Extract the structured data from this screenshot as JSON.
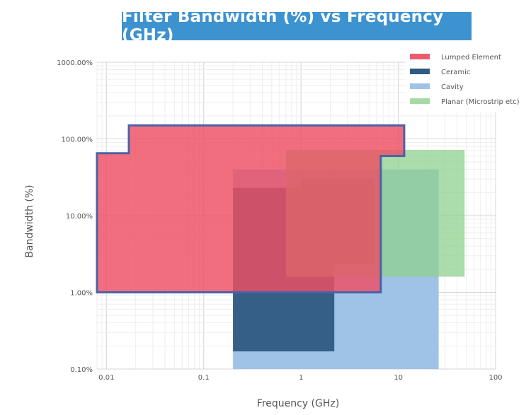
{
  "chart_data": {
    "type": "area",
    "title": "Filter Bandwidth (%) vs Frequency (GHz)",
    "xlabel": "Frequency (GHz)",
    "ylabel": "Bandwidth (%)",
    "x_scale": "log",
    "y_scale": "log",
    "xlim": [
      0.008,
      100
    ],
    "ylim": [
      0.1,
      1000
    ],
    "x_ticks": [
      {
        "value": 0.01,
        "label": "0.01"
      },
      {
        "value": 0.1,
        "label": "0.1"
      },
      {
        "value": 1,
        "label": "1"
      },
      {
        "value": 10,
        "label": "10"
      },
      {
        "value": 100,
        "label": "100"
      }
    ],
    "y_ticks": [
      {
        "value": 0.1,
        "label": "0.10%"
      },
      {
        "value": 1,
        "label": "1.00%"
      },
      {
        "value": 10,
        "label": "10.00%"
      },
      {
        "value": 100,
        "label": "100.00%"
      },
      {
        "value": 1000,
        "label": "1000.00%"
      }
    ],
    "grid": true,
    "legend_position": "top-right",
    "series": [
      {
        "name": "Cavity",
        "color": "#9ec3e6",
        "opacity": 1,
        "polygon": [
          [
            0.2,
            0.1
          ],
          [
            26,
            0.1
          ],
          [
            26,
            40
          ],
          [
            0.2,
            40
          ]
        ]
      },
      {
        "name": "Ceramic",
        "color": "#2f5a82",
        "opacity": 0.95,
        "polygon": [
          [
            0.2,
            0.17
          ],
          [
            2.2,
            0.17
          ],
          [
            2.2,
            2.3
          ],
          [
            5.7,
            2.3
          ],
          [
            5.7,
            30
          ],
          [
            1.0,
            30
          ],
          [
            1.0,
            23
          ],
          [
            0.2,
            23
          ]
        ]
      },
      {
        "name": "Planar (Microstrip etc)",
        "color": "#8fd08f",
        "opacity": 0.75,
        "polygon": [
          [
            0.7,
            1.6
          ],
          [
            48,
            1.6
          ],
          [
            48,
            72
          ],
          [
            0.7,
            72
          ]
        ]
      },
      {
        "name": "Lumped Element",
        "color": "#ee4e63",
        "opacity": 0.82,
        "polygon": [
          [
            0.008,
            1.0
          ],
          [
            6.6,
            1.0
          ],
          [
            6.6,
            60
          ],
          [
            11.5,
            60
          ],
          [
            11.5,
            150
          ],
          [
            0.017,
            150
          ],
          [
            0.017,
            65
          ],
          [
            0.008,
            65
          ]
        ]
      }
    ],
    "legend": [
      {
        "name": "Lumped Element",
        "color": "#ee5a6d"
      },
      {
        "name": "Ceramic",
        "color": "#2f5a82"
      },
      {
        "name": "Cavity",
        "color": "#9ec3e6"
      },
      {
        "name": "Planar (Microstrip etc)",
        "color": "#a7d9a7"
      }
    ]
  }
}
